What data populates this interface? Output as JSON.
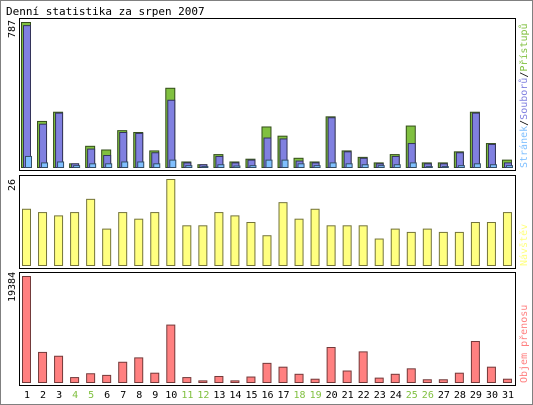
{
  "chart_data": [
    {
      "type": "bar",
      "title": "Denní statistika za srpen 2007",
      "categories": [
        "1",
        "2",
        "3",
        "4",
        "5",
        "6",
        "7",
        "8",
        "9",
        "10",
        "11",
        "12",
        "13",
        "14",
        "15",
        "16",
        "17",
        "18",
        "19",
        "20",
        "21",
        "22",
        "23",
        "24",
        "25",
        "26",
        "27",
        "28",
        "29",
        "30",
        "31"
      ],
      "weekend_days": [
        "4",
        "5",
        "11",
        "12",
        "18",
        "19",
        "25",
        "26"
      ],
      "ylabel": "787",
      "ylim": [
        0,
        787
      ],
      "legend": [
        "Stránek",
        "Souborů",
        "Přístupů"
      ],
      "legend_separator": "/",
      "series": [
        {
          "name": "Přístupů",
          "color": "#80c040",
          "values": [
            787,
            250,
            300,
            20,
            115,
            95,
            200,
            190,
            90,
            430,
            30,
            15,
            70,
            30,
            45,
            220,
            170,
            50,
            30,
            275,
            90,
            55,
            25,
            70,
            225,
            25,
            25,
            85,
            300,
            130,
            40
          ]
        },
        {
          "name": "Souborů",
          "color": "#8080e0",
          "values": [
            770,
            235,
            295,
            20,
            100,
            65,
            190,
            185,
            80,
            365,
            25,
            15,
            60,
            25,
            40,
            160,
            155,
            35,
            25,
            270,
            85,
            50,
            20,
            60,
            130,
            20,
            20,
            80,
            295,
            125,
            25
          ]
        },
        {
          "name": "Stránek",
          "color": "#80c0ff",
          "values": [
            60,
            25,
            30,
            10,
            20,
            20,
            30,
            30,
            20,
            40,
            10,
            5,
            15,
            8,
            10,
            40,
            40,
            20,
            10,
            25,
            20,
            15,
            10,
            15,
            25,
            5,
            5,
            10,
            20,
            15,
            10
          ]
        }
      ]
    },
    {
      "type": "bar",
      "categories": [
        "1",
        "2",
        "3",
        "4",
        "5",
        "6",
        "7",
        "8",
        "9",
        "10",
        "11",
        "12",
        "13",
        "14",
        "15",
        "16",
        "17",
        "18",
        "19",
        "20",
        "21",
        "22",
        "23",
        "24",
        "25",
        "26",
        "27",
        "28",
        "29",
        "30",
        "31"
      ],
      "ylabel": "26",
      "ylim": [
        0,
        26
      ],
      "legend": [
        "Návštěv"
      ],
      "series": [
        {
          "name": "Návštěv",
          "color": "#ffff80",
          "values": [
            17,
            16,
            15,
            16,
            20,
            11,
            16,
            14,
            16,
            26,
            12,
            12,
            16,
            15,
            13,
            9,
            19,
            14,
            17,
            12,
            12,
            12,
            8,
            11,
            10,
            11,
            10,
            10,
            13,
            13,
            16
          ]
        }
      ]
    },
    {
      "type": "bar",
      "categories": [
        "1",
        "2",
        "3",
        "4",
        "5",
        "6",
        "7",
        "8",
        "9",
        "10",
        "11",
        "12",
        "13",
        "14",
        "15",
        "16",
        "17",
        "18",
        "19",
        "20",
        "21",
        "22",
        "23",
        "24",
        "25",
        "26",
        "27",
        "28",
        "29",
        "30",
        "31"
      ],
      "ylabel": "19384",
      "ylim": [
        0,
        19384
      ],
      "legend": [
        "Objem přenosu"
      ],
      "series": [
        {
          "name": "Objem přenosu",
          "color": "#ff8080",
          "values": [
            19384,
            5500,
            4800,
            900,
            1600,
            1300,
            3700,
            4500,
            1700,
            10500,
            900,
            300,
            1100,
            300,
            1000,
            3500,
            2800,
            1500,
            600,
            6400,
            2100,
            5600,
            800,
            1500,
            2500,
            500,
            500,
            1700,
            7500,
            2800,
            600
          ]
        }
      ]
    }
  ]
}
